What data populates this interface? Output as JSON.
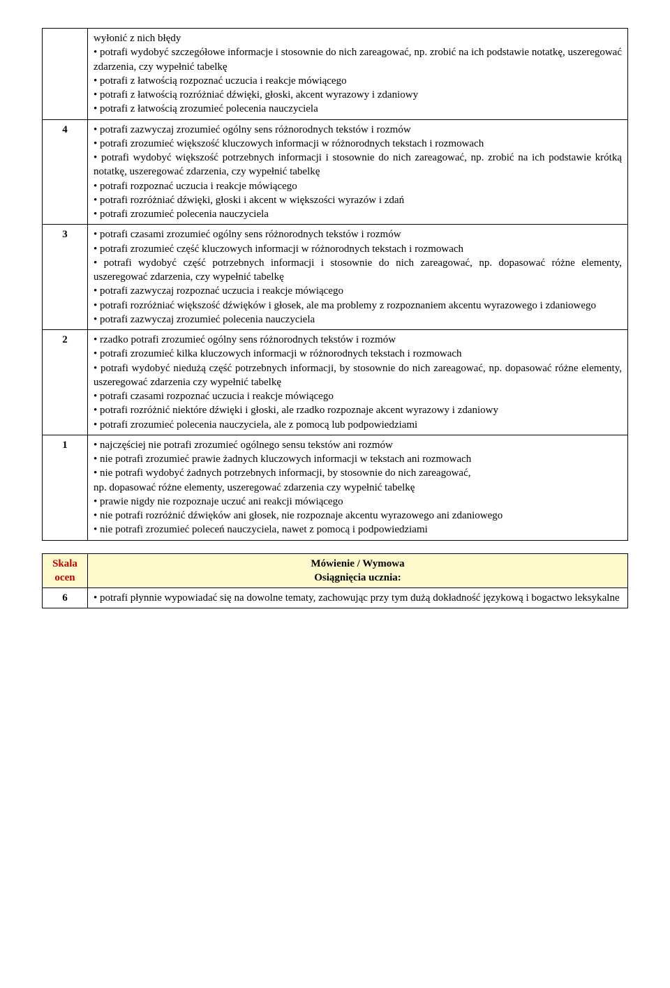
{
  "table1": {
    "rows": [
      {
        "num": "",
        "lines": [
          "wyłonić z nich błędy",
          "• potrafi wydobyć szczegółowe informacje i stosownie do nich zareagować, np. zrobić na ich podstawie notatkę, uszeregować zdarzenia, czy wypełnić tabelkę",
          "• potrafi z łatwością rozpoznać uczucia i reakcje mówiącego",
          "• potrafi z łatwością rozróżniać dźwięki, głoski, akcent wyrazowy i zdaniowy",
          "• potrafi z łatwością zrozumieć polecenia nauczyciela"
        ]
      },
      {
        "num": "4",
        "lines": [
          "• potrafi zazwyczaj zrozumieć ogólny sens różnorodnych tekstów i rozmów",
          "• potrafi zrozumieć większość kluczowych informacji w różnorodnych tekstach i rozmowach",
          "• potrafi wydobyć większość potrzebnych informacji i stosownie do nich zareagować, np. zrobić na ich podstawie krótką notatkę, uszeregować zdarzenia, czy wypełnić tabelkę",
          "• potrafi rozpoznać uczucia i reakcje mówiącego",
          "• potrafi rozróżniać dźwięki, głoski i akcent w większości wyrazów i zdań",
          "• potrafi zrozumieć polecenia nauczyciela"
        ]
      },
      {
        "num": "3",
        "lines": [
          "• potrafi czasami zrozumieć ogólny sens różnorodnych tekstów i rozmów",
          "• potrafi zrozumieć część kluczowych informacji w różnorodnych tekstach i rozmowach",
          "• potrafi wydobyć część potrzebnych informacji i stosownie do nich zareagować, np. dopasować różne elementy, uszeregować zdarzenia, czy wypełnić tabelkę",
          "• potrafi zazwyczaj rozpoznać uczucia i reakcje mówiącego",
          "• potrafi rozróżniać większość dźwięków i głosek, ale ma problemy z rozpoznaniem akcentu wyrazowego i zdaniowego",
          "• potrafi zazwyczaj zrozumieć polecenia nauczyciela"
        ]
      },
      {
        "num": "2",
        "lines": [
          "• rzadko potrafi zrozumieć ogólny sens różnorodnych tekstów i rozmów",
          "• potrafi zrozumieć kilka kluczowych informacji w różnorodnych tekstach i rozmowach",
          "• potrafi wydobyć niedużą część potrzebnych informacji, by stosownie do nich zareagować, np. dopasować różne elementy, uszeregować zdarzenia czy wypełnić tabelkę",
          "• potrafi czasami rozpoznać uczucia i reakcje mówiącego",
          "• potrafi rozróżnić niektóre dźwięki i głoski, ale rzadko rozpoznaje akcent wyrazowy i zdaniowy",
          "• potrafi zrozumieć polecenia nauczyciela, ale z pomocą lub podpowiedziami"
        ]
      },
      {
        "num": "1",
        "lines": [
          "• najczęściej nie potrafi zrozumieć ogólnego sensu tekstów ani rozmów",
          "• nie potrafi zrozumieć prawie żadnych kluczowych informacji w tekstach ani rozmowach",
          "• nie potrafi wydobyć żadnych potrzebnych informacji, by stosownie do nich zareagować,",
          "np. dopasować różne elementy, uszeregować zdarzenia czy wypełnić tabelkę",
          "• prawie nigdy nie rozpoznaje uczuć ani reakcji mówiącego",
          "• nie potrafi rozróżnić dźwięków ani głosek, nie rozpoznaje akcentu wyrazowego ani zdaniowego",
          "• nie potrafi zrozumieć poleceń nauczyciela, nawet z pomocą i podpowiedziami"
        ]
      }
    ]
  },
  "table2": {
    "header": {
      "left1": "Skala",
      "left2": "ocen",
      "right1": "Mówienie / Wymowa",
      "right2": "Osiągnięcia ucznia:"
    },
    "rows": [
      {
        "num": "6",
        "lines": [
          "• potrafi płynnie wypowiadać się na dowolne tematy, zachowując przy tym dużą dokładność językową i bogactwo leksykalne"
        ]
      }
    ]
  }
}
